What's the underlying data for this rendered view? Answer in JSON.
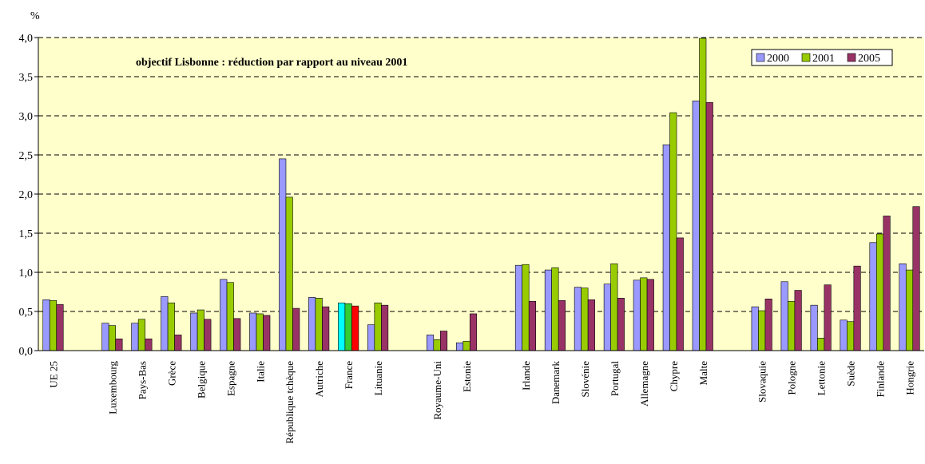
{
  "chart_data": {
    "type": "bar",
    "ylabel": "%",
    "annotation": "objectif Lisbonne : réduction par rapport au niveau 2001",
    "ylim": [
      0,
      4
    ],
    "yticks": [
      "0,0",
      "0,5",
      "1,0",
      "1,5",
      "2,0",
      "2,5",
      "3,0",
      "3,5",
      "4,0"
    ],
    "grid": true,
    "legend_position": "top-right",
    "series": [
      {
        "name": "2000",
        "color": "#9999ff"
      },
      {
        "name": "2001",
        "color": "#99cc00"
      },
      {
        "name": "2005",
        "color": "#993366"
      }
    ],
    "categories": [
      "UE 25",
      "",
      "Luxembourg",
      "Pays-Bas",
      "Grèce",
      "Belgique",
      "Espagne",
      "Italie",
      "République tchèque",
      "Autriche",
      "France",
      "Lituanie",
      "",
      "Royaume-Uni",
      "Estonie",
      "",
      "Irlande",
      "Danemark",
      "Slovénie",
      "Portugal",
      "Allemagne",
      "Chypre",
      "Malte",
      "",
      "Slovaquie",
      "Pologne",
      "Lettonie",
      "Suède",
      "Finlande",
      "Hongrie"
    ],
    "values": [
      [
        0.65,
        0.64,
        0.59
      ],
      null,
      [
        0.35,
        0.32,
        0.15
      ],
      [
        0.35,
        0.4,
        0.15
      ],
      [
        0.69,
        0.61,
        0.2
      ],
      [
        0.48,
        0.52,
        0.4
      ],
      [
        0.91,
        0.87,
        0.41
      ],
      [
        0.48,
        0.47,
        0.45
      ],
      [
        2.45,
        1.96,
        0.54
      ],
      [
        0.68,
        0.67,
        0.56
      ],
      [
        0.61,
        0.6,
        0.57
      ],
      [
        0.33,
        0.61,
        0.58
      ],
      null,
      [
        0.2,
        0.14,
        0.25
      ],
      [
        0.1,
        0.12,
        0.47
      ],
      null,
      [
        1.09,
        1.1,
        0.63
      ],
      [
        1.03,
        1.06,
        0.64
      ],
      [
        0.81,
        0.8,
        0.65
      ],
      [
        0.85,
        1.11,
        0.67
      ],
      [
        0.9,
        0.93,
        0.91
      ],
      [
        2.63,
        3.04,
        1.44
      ],
      [
        3.19,
        3.99,
        3.17
      ],
      null,
      [
        0.56,
        0.51,
        0.66
      ],
      [
        0.88,
        0.63,
        0.77
      ],
      [
        0.58,
        0.16,
        0.84
      ],
      [
        0.39,
        0.37,
        1.08
      ],
      [
        1.38,
        1.49,
        1.72
      ],
      [
        1.11,
        1.03,
        1.84
      ]
    ],
    "highlight": {
      "category": "France",
      "colors": [
        "#00ffff",
        "#33cc33",
        "#ff0000"
      ]
    }
  }
}
